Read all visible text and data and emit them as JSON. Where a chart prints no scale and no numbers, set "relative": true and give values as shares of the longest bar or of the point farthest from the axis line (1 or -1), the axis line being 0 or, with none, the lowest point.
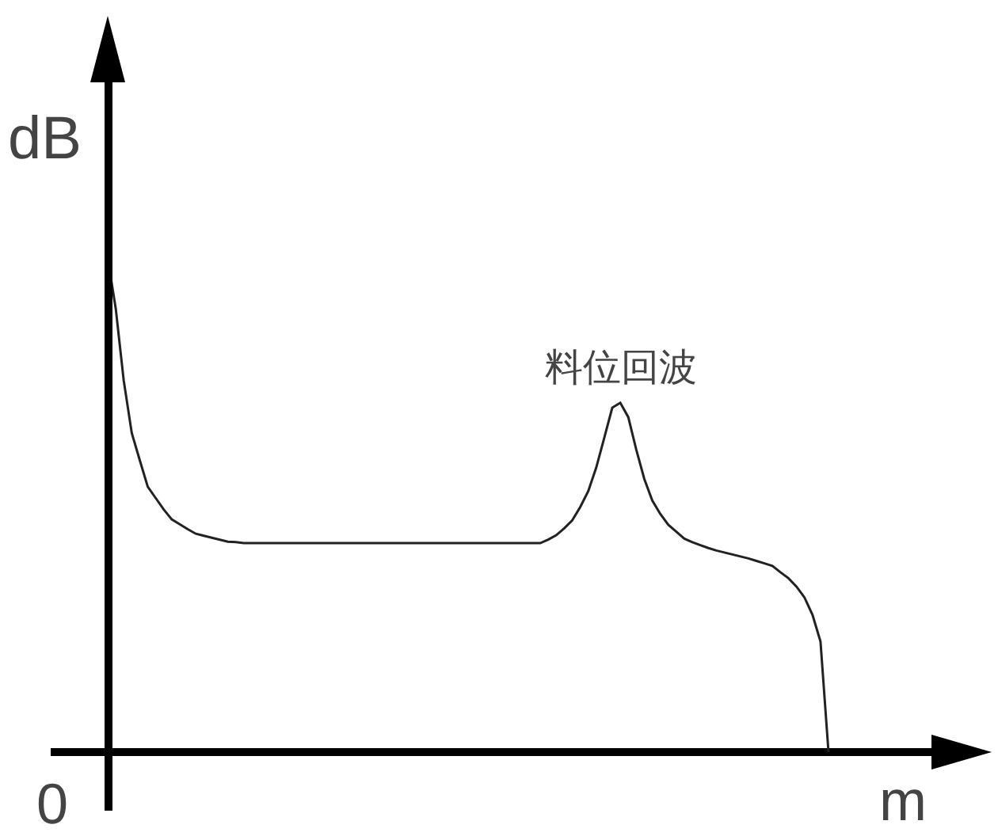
{
  "chart_data": {
    "type": "line",
    "xlabel": "m",
    "ylabel": "dB",
    "relative": true,
    "color": "#222222",
    "categories": [
      null,
      null,
      null,
      null,
      null,
      null,
      null,
      null,
      null,
      null,
      null,
      null,
      null,
      null,
      null,
      null,
      null,
      null,
      null,
      null,
      null,
      null,
      null,
      null,
      null,
      null,
      null,
      null,
      null,
      null,
      null,
      null,
      null,
      null,
      null,
      null,
      null,
      null,
      null,
      null,
      null,
      null,
      null,
      null,
      null,
      null,
      null,
      null,
      null,
      null,
      null,
      null,
      null,
      null,
      null,
      null,
      null,
      null,
      null,
      null,
      null,
      null,
      null,
      null,
      null,
      null,
      null,
      null,
      null,
      null,
      null,
      null,
      null,
      null,
      null,
      null,
      null,
      null,
      null,
      null,
      null,
      null,
      null,
      null,
      null,
      null,
      null,
      null,
      null,
      null,
      null
    ],
    "values": [
      1.0,
      0.898,
      0.752,
      0.646,
      0.591,
      0.537,
      0.514,
      0.491,
      0.471,
      0.461,
      0.451,
      0.442,
      0.438,
      0.434,
      0.43,
      0.426,
      0.425,
      0.423,
      0.423,
      0.423,
      0.423,
      0.423,
      0.423,
      0.423,
      0.423,
      0.423,
      0.423,
      0.423,
      0.423,
      0.423,
      0.423,
      0.423,
      0.423,
      0.423,
      0.423,
      0.423,
      0.423,
      0.423,
      0.423,
      0.423,
      0.423,
      0.423,
      0.423,
      0.423,
      0.423,
      0.423,
      0.423,
      0.423,
      0.423,
      0.423,
      0.423,
      0.423,
      0.423,
      0.423,
      0.423,
      0.43,
      0.439,
      0.453,
      0.469,
      0.496,
      0.528,
      0.576,
      0.636,
      0.697,
      0.707,
      0.678,
      0.612,
      0.553,
      0.509,
      0.482,
      0.46,
      0.446,
      0.432,
      0.425,
      0.419,
      0.413,
      0.408,
      0.404,
      0.4,
      0.396,
      0.392,
      0.387,
      0.382,
      0.377,
      0.364,
      0.352,
      0.335,
      0.313,
      0.278,
      0.224,
      0.0
    ],
    "annotations": [
      "0",
      {
        "text": "料位回波",
        "y": 0.707
      }
    ]
  }
}
